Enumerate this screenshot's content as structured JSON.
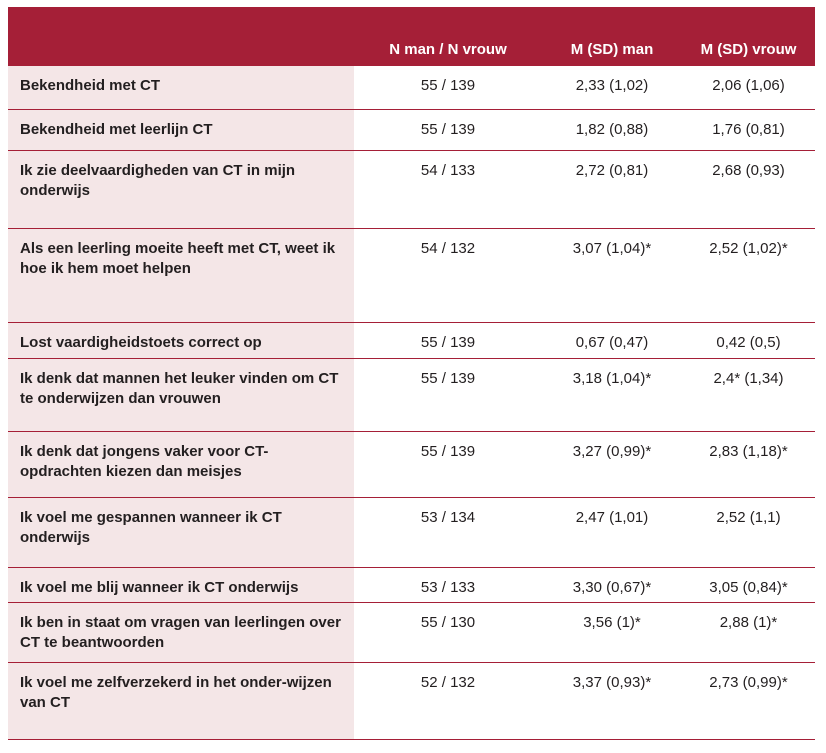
{
  "table": {
    "headers": [
      "",
      "N man / N vrouw",
      "M (SD) man",
      "M (SD) vrouw"
    ],
    "rows": [
      {
        "label": "Bekendheid met CT",
        "n": "55 / 139",
        "man": "2,33 (1,02)",
        "vrouw": "2,06 (1,06)"
      },
      {
        "label": "Bekendheid met leerlijn CT",
        "n": "55 / 139",
        "man": "1,82 (0,88)",
        "vrouw": "1,76 (0,81)"
      },
      {
        "label": "Ik zie deelvaardigheden van CT in mijn onderwijs",
        "n": "54 / 133",
        "man": "2,72 (0,81)",
        "vrouw": "2,68 (0,93)"
      },
      {
        "label": "Als een leerling moeite heeft met CT, weet ik hoe ik hem moet helpen",
        "n": "54 / 132",
        "man": "3,07 (1,04)*",
        "vrouw": "2,52 (1,02)*"
      },
      {
        "label": "Lost vaardigheidstoets correct op",
        "n": "55 / 139",
        "man": "0,67 (0,47)",
        "vrouw": "0,42 (0,5)"
      },
      {
        "label": "Ik denk dat mannen het leuker vinden om CT te onderwijzen dan vrouwen",
        "n": "55 / 139",
        "man": "3,18 (1,04)*",
        "vrouw": "2,4* (1,34)"
      },
      {
        "label": "Ik denk dat jongens vaker voor CT-opdrachten kiezen dan meisjes",
        "n": "55 / 139",
        "man": "3,27 (0,99)*",
        "vrouw": "2,83 (1,18)*"
      },
      {
        "label": "Ik voel me gespannen wanneer ik CT onderwijs",
        "n": "53 / 134",
        "man": "2,47 (1,01)",
        "vrouw": "2,52 (1,1)"
      },
      {
        "label": "Ik voel me blij wanneer ik CT onderwijs",
        "n": "53 / 133",
        "man": "3,30 (0,67)*",
        "vrouw": "3,05 (0,84)*"
      },
      {
        "label": "Ik ben in staat om vragen van leerlingen over CT te beantwoorden",
        "n": "55 / 130",
        "man": "3,56 (1)*",
        "vrouw": "2,88 (1)*"
      },
      {
        "label": "Ik voel me zelfverzekerd in het onder-wijzen van CT",
        "n": "52 / 132",
        "man": "3,37 (0,93)*",
        "vrouw": "2,73 (0,99)*"
      }
    ]
  }
}
